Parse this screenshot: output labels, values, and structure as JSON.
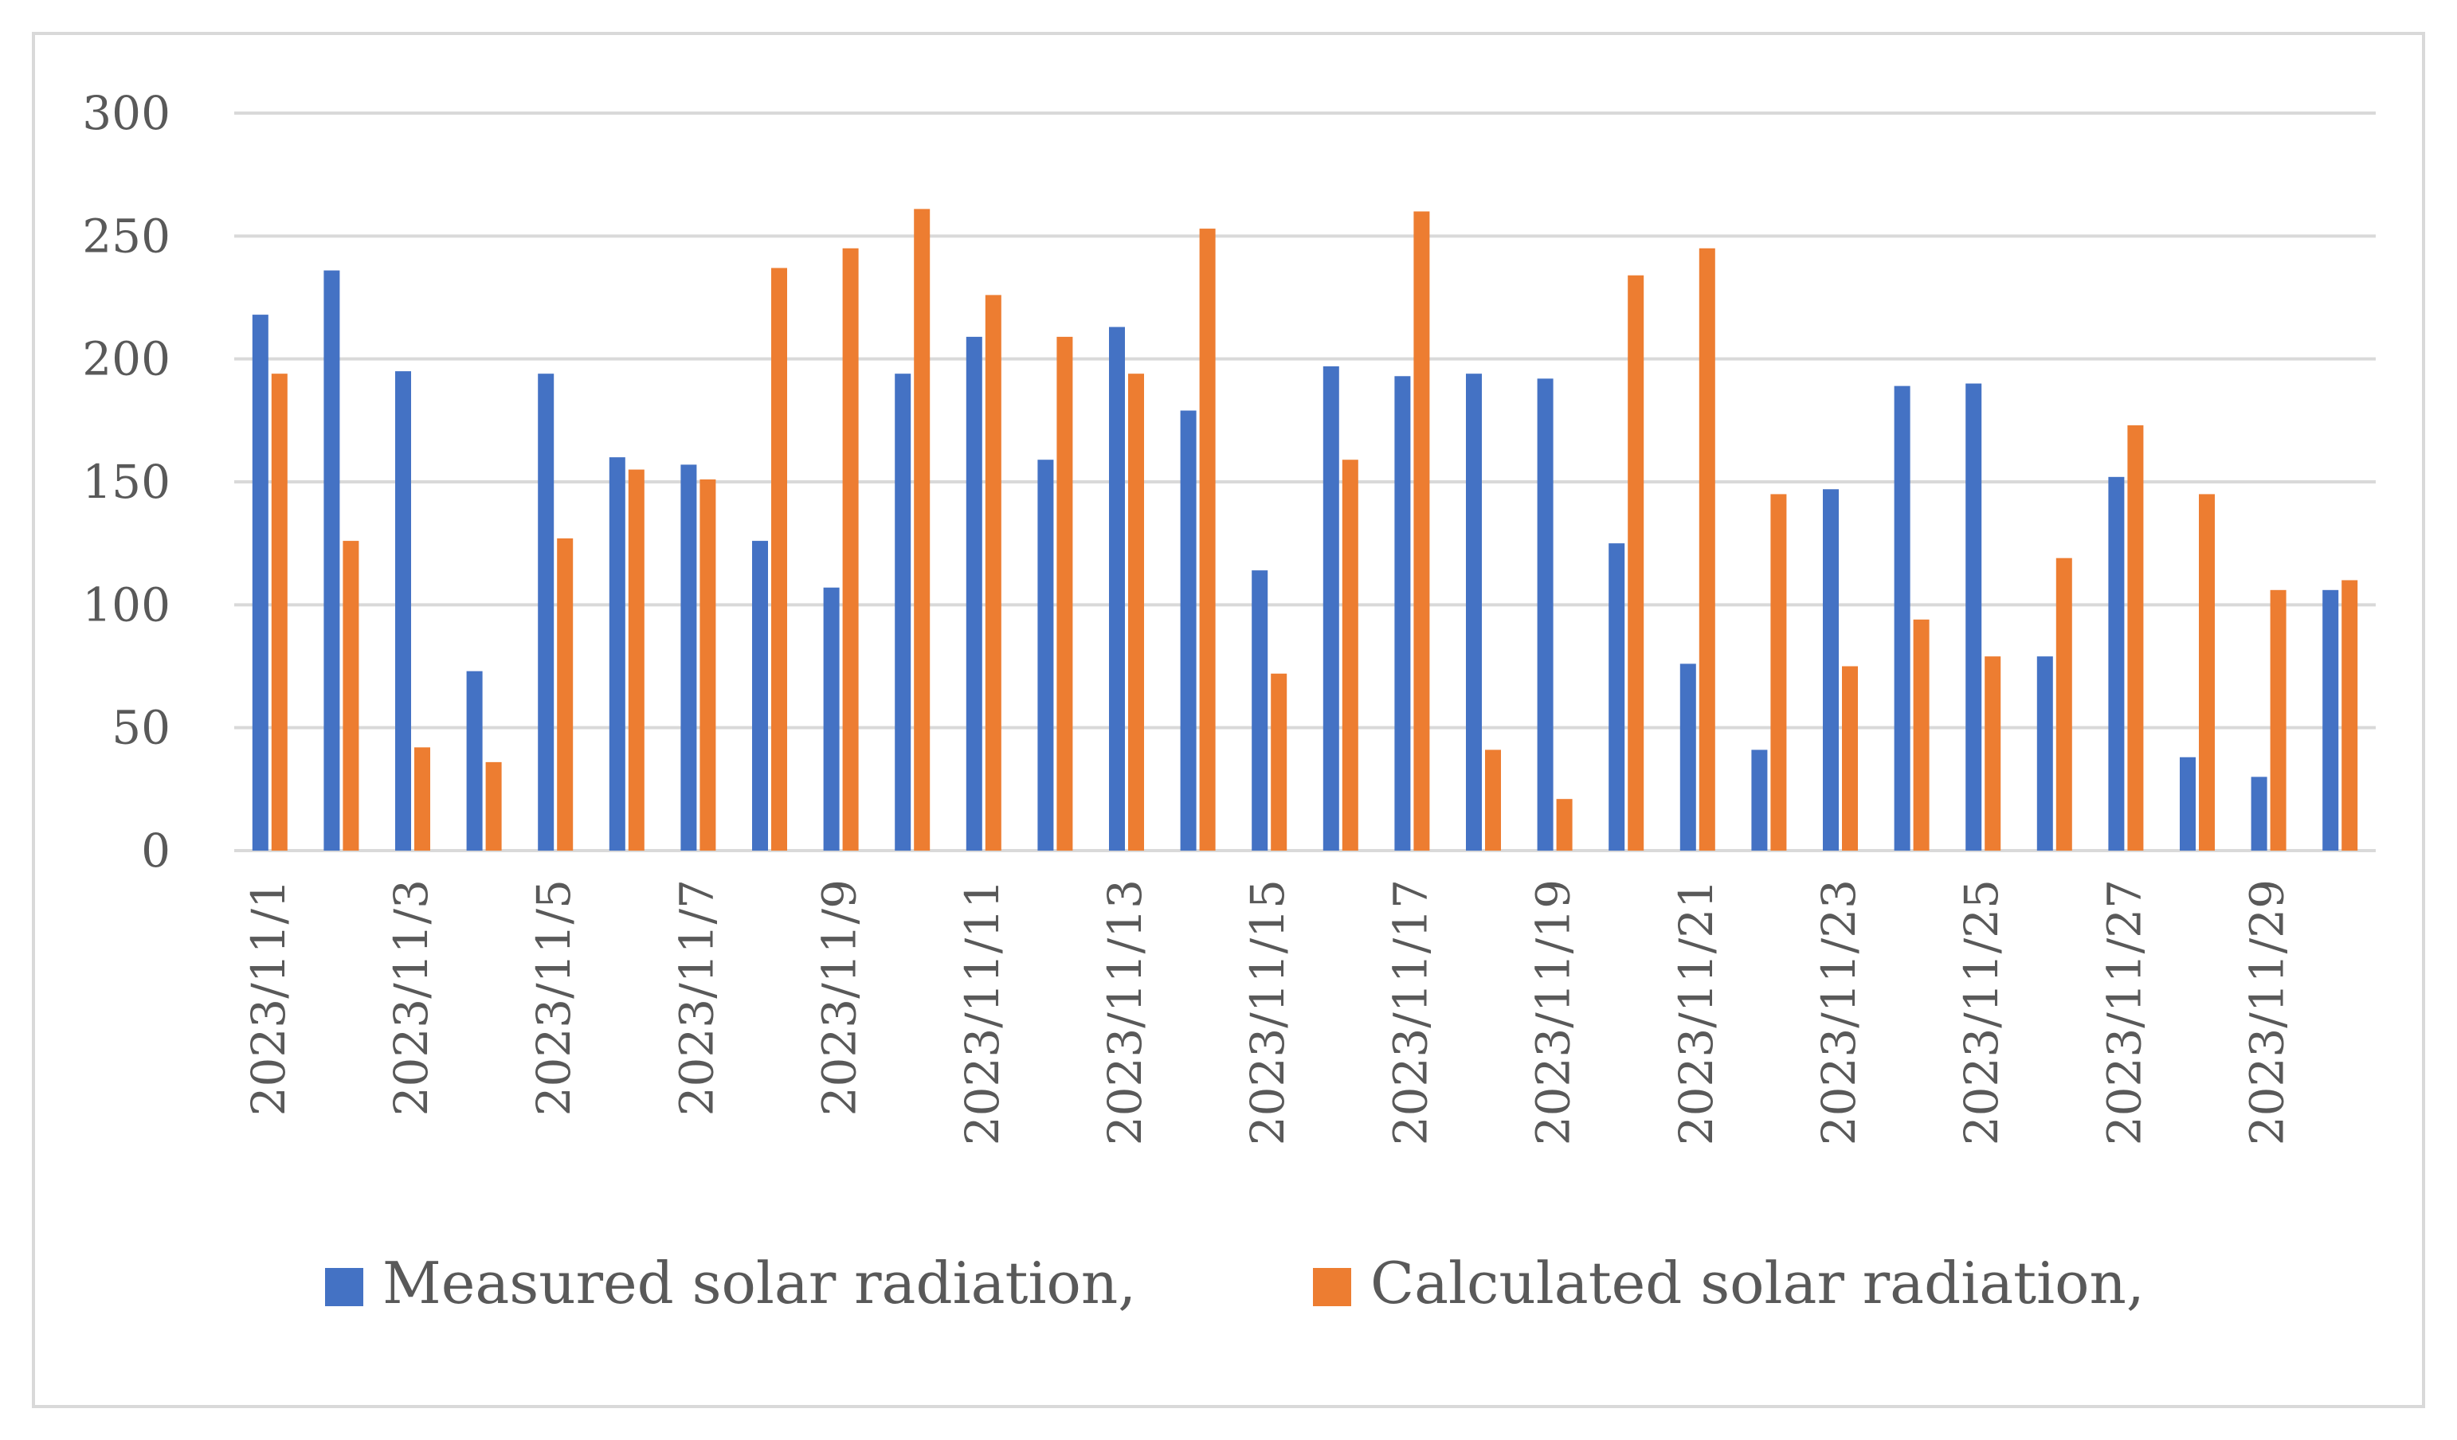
{
  "chart_data": {
    "type": "bar",
    "title": "",
    "xlabel": "",
    "ylabel": "",
    "ylim": [
      0,
      300
    ],
    "yticks": [
      0,
      50,
      100,
      150,
      200,
      250,
      300
    ],
    "grid": true,
    "legend_position": "bottom",
    "categories": [
      "2023/11/1",
      "2023/11/2",
      "2023/11/3",
      "2023/11/4",
      "2023/11/5",
      "2023/11/6",
      "2023/11/7",
      "2023/11/8",
      "2023/11/9",
      "2023/11/10",
      "2023/11/11",
      "2023/11/12",
      "2023/11/13",
      "2023/11/14",
      "2023/11/15",
      "2023/11/16",
      "2023/11/17",
      "2023/11/18",
      "2023/11/19",
      "2023/11/20",
      "2023/11/21",
      "2023/11/22",
      "2023/11/23",
      "2023/11/24",
      "2023/11/25",
      "2023/11/26",
      "2023/11/27",
      "2023/11/28",
      "2023/11/29",
      "2023/11/30"
    ],
    "tick_labels_shown": [
      "2023/11/1",
      "2023/11/3",
      "2023/11/5",
      "2023/11/7",
      "2023/11/9",
      "2023/11/11",
      "2023/11/13",
      "2023/11/15",
      "2023/11/17",
      "2023/11/19",
      "2023/11/21",
      "2023/11/23",
      "2023/11/25",
      "2023/11/27",
      "2023/11/29"
    ],
    "series": [
      {
        "name": "Measured solar radiation,",
        "color": "#4472c4",
        "values": [
          218,
          236,
          195,
          73,
          194,
          160,
          157,
          126,
          107,
          194,
          209,
          159,
          213,
          179,
          114,
          197,
          193,
          194,
          192,
          125,
          76,
          41,
          147,
          189,
          190,
          79,
          152,
          38,
          30,
          106
        ]
      },
      {
        "name": "Calculated solar radiation,",
        "color": "#ed7d31",
        "values": [
          194,
          126,
          42,
          36,
          127,
          155,
          151,
          237,
          245,
          261,
          226,
          209,
          194,
          253,
          72,
          159,
          260,
          41,
          21,
          234,
          245,
          145,
          75,
          94,
          79,
          119,
          173,
          145,
          106,
          110
        ]
      }
    ]
  }
}
